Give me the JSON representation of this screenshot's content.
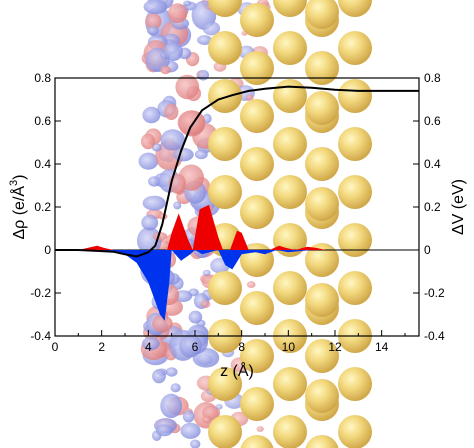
{
  "chart_data": {
    "type": "area",
    "xlabel": "z (Å)",
    "ylabel_left": "Δρ (e/Å³)",
    "ylabel_left_parts": {
      "main": "Δρ (e/Å",
      "sup": "3",
      "close": ")"
    },
    "ylabel_right": "ΔV (eV)",
    "xlim": [
      0,
      15.6
    ],
    "ylim_left": [
      -0.4,
      0.8
    ],
    "ylim_right": [
      -0.4,
      0.8
    ],
    "xticks": [
      0,
      2,
      4,
      6,
      8,
      10,
      12,
      14
    ],
    "yticks_left": [
      -0.4,
      -0.2,
      0,
      0.2,
      0.4,
      0.6,
      0.8
    ],
    "yticks_right": [
      -0.4,
      -0.2,
      0,
      0.2,
      0.4,
      0.6,
      0.8
    ],
    "grid": false,
    "legend": "none",
    "series": [
      {
        "kind": "filled-positive",
        "color": "#ee0000",
        "x": [
          0,
          1.0,
          1.4,
          1.8,
          2.1,
          2.5,
          3.0,
          4.8,
          5.0,
          5.3,
          5.7,
          5.9,
          6.2,
          6.6,
          7.0,
          7.2,
          7.5,
          7.8,
          8.0,
          8.3,
          9.2,
          9.6,
          9.9,
          10.3,
          10.8,
          11.2,
          11.6,
          12.0
        ],
        "values": [
          0,
          0.0,
          0.01,
          0.02,
          0.01,
          0.0,
          0.0,
          0.0,
          0.08,
          0.17,
          0.05,
          0.0,
          0.19,
          0.21,
          0.06,
          0.0,
          0.0,
          0.09,
          0.08,
          0.0,
          0.0,
          0.02,
          0.01,
          0.0,
          0.015,
          0.01,
          0.0,
          0.0
        ]
      },
      {
        "kind": "filled-negative",
        "color": "#0033ee",
        "x": [
          0,
          2.2,
          3.0,
          3.5,
          4.0,
          4.3,
          4.5,
          4.7,
          4.9,
          5.0,
          5.4,
          5.8,
          6.0,
          6.3,
          7.0,
          7.3,
          7.6,
          8.0,
          8.6,
          9.0,
          9.5,
          10.0,
          11.0,
          12.0,
          15.6
        ],
        "values": [
          0,
          -0.005,
          -0.02,
          -0.06,
          -0.15,
          -0.24,
          -0.3,
          -0.33,
          -0.15,
          0.0,
          -0.05,
          -0.02,
          0.0,
          -0.02,
          0.0,
          -0.07,
          -0.09,
          -0.02,
          -0.01,
          -0.02,
          0.0,
          -0.01,
          0.0,
          0.0,
          0.0
        ]
      },
      {
        "kind": "line",
        "color": "#000000",
        "axis": "right",
        "x": [
          0,
          1,
          2,
          2.5,
          3.0,
          3.5,
          4.0,
          4.3,
          4.6,
          5.0,
          5.4,
          5.8,
          6.3,
          7.0,
          7.6,
          8.3,
          9.0,
          10.0,
          11.0,
          12.0,
          13.0,
          14.0,
          15.6
        ],
        "values": [
          0,
          0,
          -0.005,
          -0.008,
          -0.02,
          -0.03,
          -0.01,
          0.02,
          0.12,
          0.32,
          0.46,
          0.57,
          0.65,
          0.7,
          0.72,
          0.74,
          0.75,
          0.76,
          0.755,
          0.745,
          0.74,
          0.74,
          0.74
        ]
      }
    ],
    "background_image": "structure-isosurface-atoms"
  }
}
